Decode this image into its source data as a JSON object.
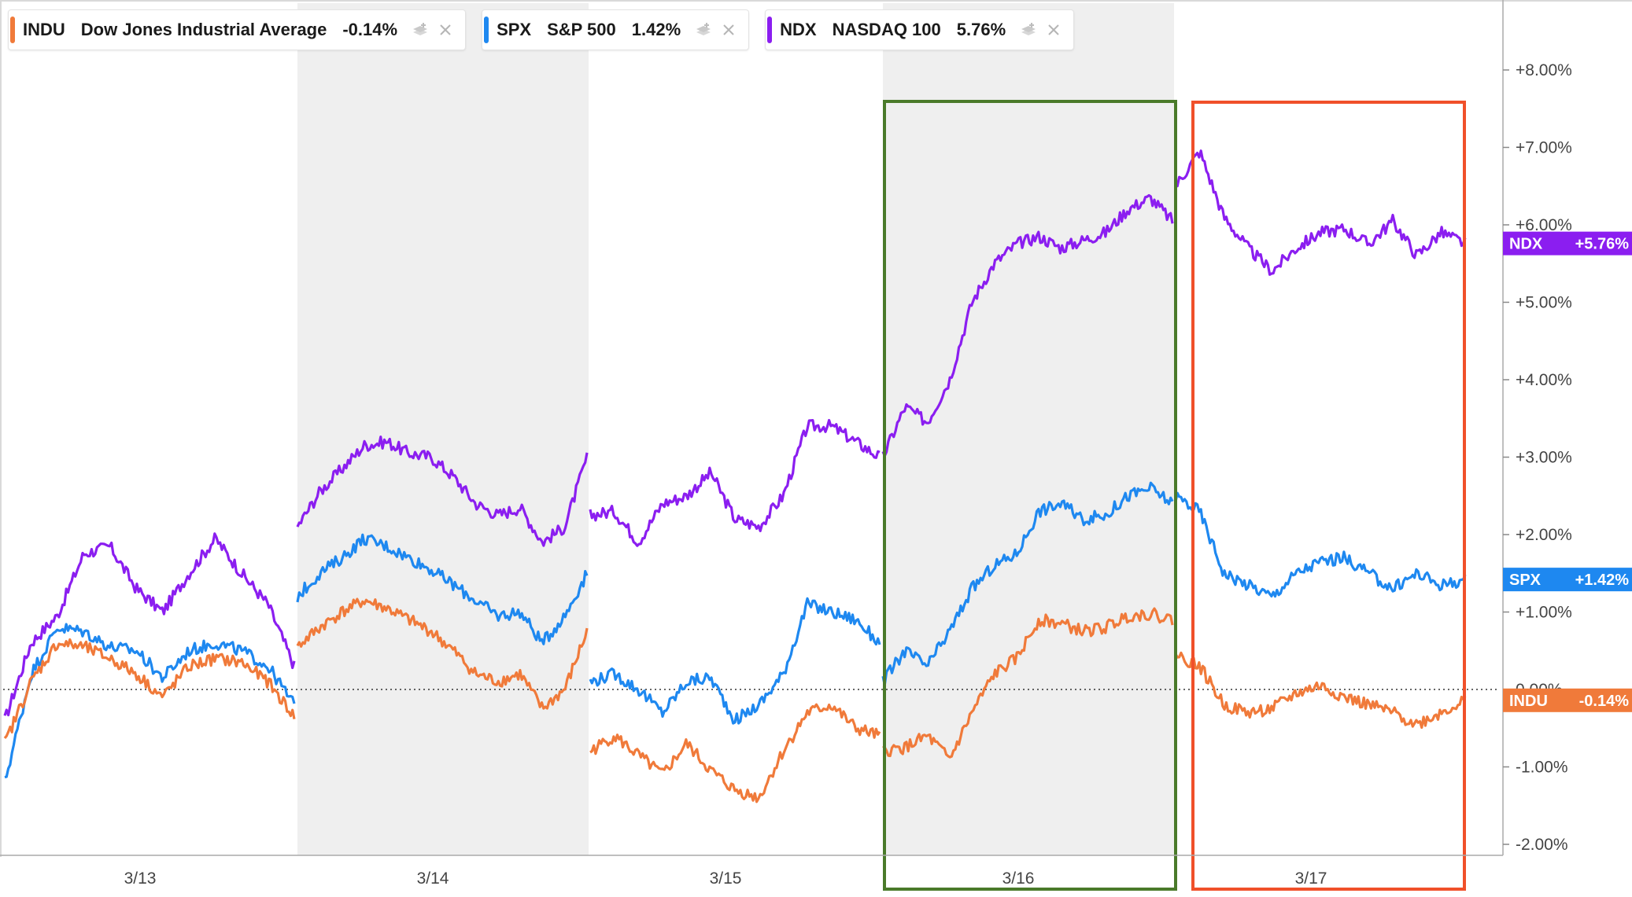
{
  "legend": [
    {
      "symbol": "INDU",
      "name": "Dow Jones Industrial Average",
      "change": "-0.14%",
      "color": "#f07a3a",
      "stack_icon": "layers-icon",
      "close_icon": "close-icon"
    },
    {
      "symbol": "SPX",
      "name": "S&P 500",
      "change": "1.42%",
      "color": "#1e88f0",
      "stack_icon": "layers-icon",
      "close_icon": "close-icon"
    },
    {
      "symbol": "NDX",
      "name": "NASDAQ 100",
      "change": "5.76%",
      "color": "#8b1ef0",
      "stack_icon": "layers-icon",
      "close_icon": "close-icon"
    }
  ],
  "value_tags": [
    {
      "label": "NDX",
      "value": "+5.76%",
      "color": "#8b1ef0"
    },
    {
      "label": "SPX",
      "value": "+1.42%",
      "color": "#1e88f0"
    },
    {
      "label": "INDU",
      "value": "-0.14%",
      "color": "#f07a3a"
    }
  ],
  "chart_data": {
    "type": "line",
    "title": "",
    "xlabel": "",
    "ylabel": "",
    "x_ticks": [
      "3/13",
      "3/14",
      "3/15",
      "3/16",
      "3/17"
    ],
    "y_ticks": [
      "+8.00%",
      "+7.00%",
      "+6.00%",
      "+5.00%",
      "+4.00%",
      "+3.00%",
      "+2.00%",
      "+1.00%",
      "0.00%",
      "-1.00%",
      "-2.00%"
    ],
    "ylim": [
      -2.0,
      8.0
    ],
    "baseline": 0.0,
    "grid": false,
    "legend_position": "top-left",
    "shaded_days": [
      "3/14",
      "3/16"
    ],
    "highlight_boxes": [
      {
        "day": "3/16",
        "color": "#4a7a2a"
      },
      {
        "day": "3/17",
        "color": "#f0502a"
      }
    ],
    "series": [
      {
        "name": "NDX",
        "color": "#8b1ef0",
        "days": [
          [
            -0.4,
            0.6,
            0.95,
            1.75,
            1.85,
            1.3,
            1.0,
            1.5,
            1.95,
            1.5,
            1.1,
            0.3
          ],
          [
            2.1,
            2.55,
            2.85,
            3.15,
            3.2,
            3.05,
            3.0,
            2.75,
            2.4,
            2.25,
            2.35,
            1.9,
            2.1,
            3.0
          ],
          [
            2.25,
            2.3,
            1.9,
            2.4,
            2.5,
            2.8,
            2.2,
            2.1,
            2.5,
            3.4,
            3.4,
            3.2,
            3.0
          ],
          [
            3.0,
            3.65,
            3.45,
            4.0,
            5.0,
            5.5,
            5.75,
            5.85,
            5.7,
            5.8,
            5.9,
            6.2,
            6.35,
            6.05
          ],
          [
            6.5,
            6.95,
            6.1,
            5.7,
            5.4,
            5.7,
            5.9,
            5.95,
            5.75,
            6.05,
            5.6,
            5.9,
            5.76
          ]
        ]
      },
      {
        "name": "SPX",
        "color": "#1e88f0",
        "days": [
          [
            -1.2,
            0.2,
            0.8,
            0.75,
            0.55,
            0.5,
            0.15,
            0.5,
            0.6,
            0.5,
            0.3,
            -0.2
          ],
          [
            1.2,
            1.5,
            1.7,
            1.95,
            1.85,
            1.7,
            1.55,
            1.35,
            1.15,
            0.95,
            1.0,
            0.6,
            0.95,
            1.5
          ],
          [
            0.1,
            0.2,
            0.0,
            -0.3,
            0.1,
            0.15,
            -0.4,
            -0.2,
            0.2,
            1.1,
            1.0,
            0.9,
            0.6
          ],
          [
            0.1,
            0.5,
            0.3,
            0.75,
            1.3,
            1.6,
            1.75,
            2.3,
            2.4,
            2.2,
            2.25,
            2.5,
            2.6,
            2.4
          ],
          [
            2.5,
            2.3,
            1.5,
            1.35,
            1.2,
            1.5,
            1.65,
            1.7,
            1.5,
            1.3,
            1.5,
            1.35,
            1.42
          ]
        ]
      },
      {
        "name": "INDU",
        "color": "#f07a3a",
        "days": [
          [
            -0.7,
            0.1,
            0.6,
            0.55,
            0.4,
            0.2,
            -0.1,
            0.3,
            0.4,
            0.35,
            0.1,
            -0.35
          ],
          [
            0.55,
            0.8,
            1.0,
            1.15,
            1.05,
            0.9,
            0.75,
            0.5,
            0.2,
            0.1,
            0.2,
            -0.25,
            0.0,
            0.75
          ],
          [
            -0.8,
            -0.6,
            -0.85,
            -1.1,
            -0.7,
            -1.05,
            -1.3,
            -1.4,
            -0.8,
            -0.3,
            -0.2,
            -0.5,
            -0.6
          ],
          [
            -0.8,
            -0.75,
            -0.6,
            -0.9,
            -0.3,
            0.2,
            0.4,
            0.9,
            0.85,
            0.75,
            0.8,
            0.95,
            0.98,
            0.9
          ],
          [
            0.45,
            0.3,
            -0.2,
            -0.3,
            -0.25,
            -0.05,
            0.05,
            -0.1,
            -0.2,
            -0.3,
            -0.45,
            -0.3,
            -0.14
          ]
        ]
      }
    ]
  }
}
